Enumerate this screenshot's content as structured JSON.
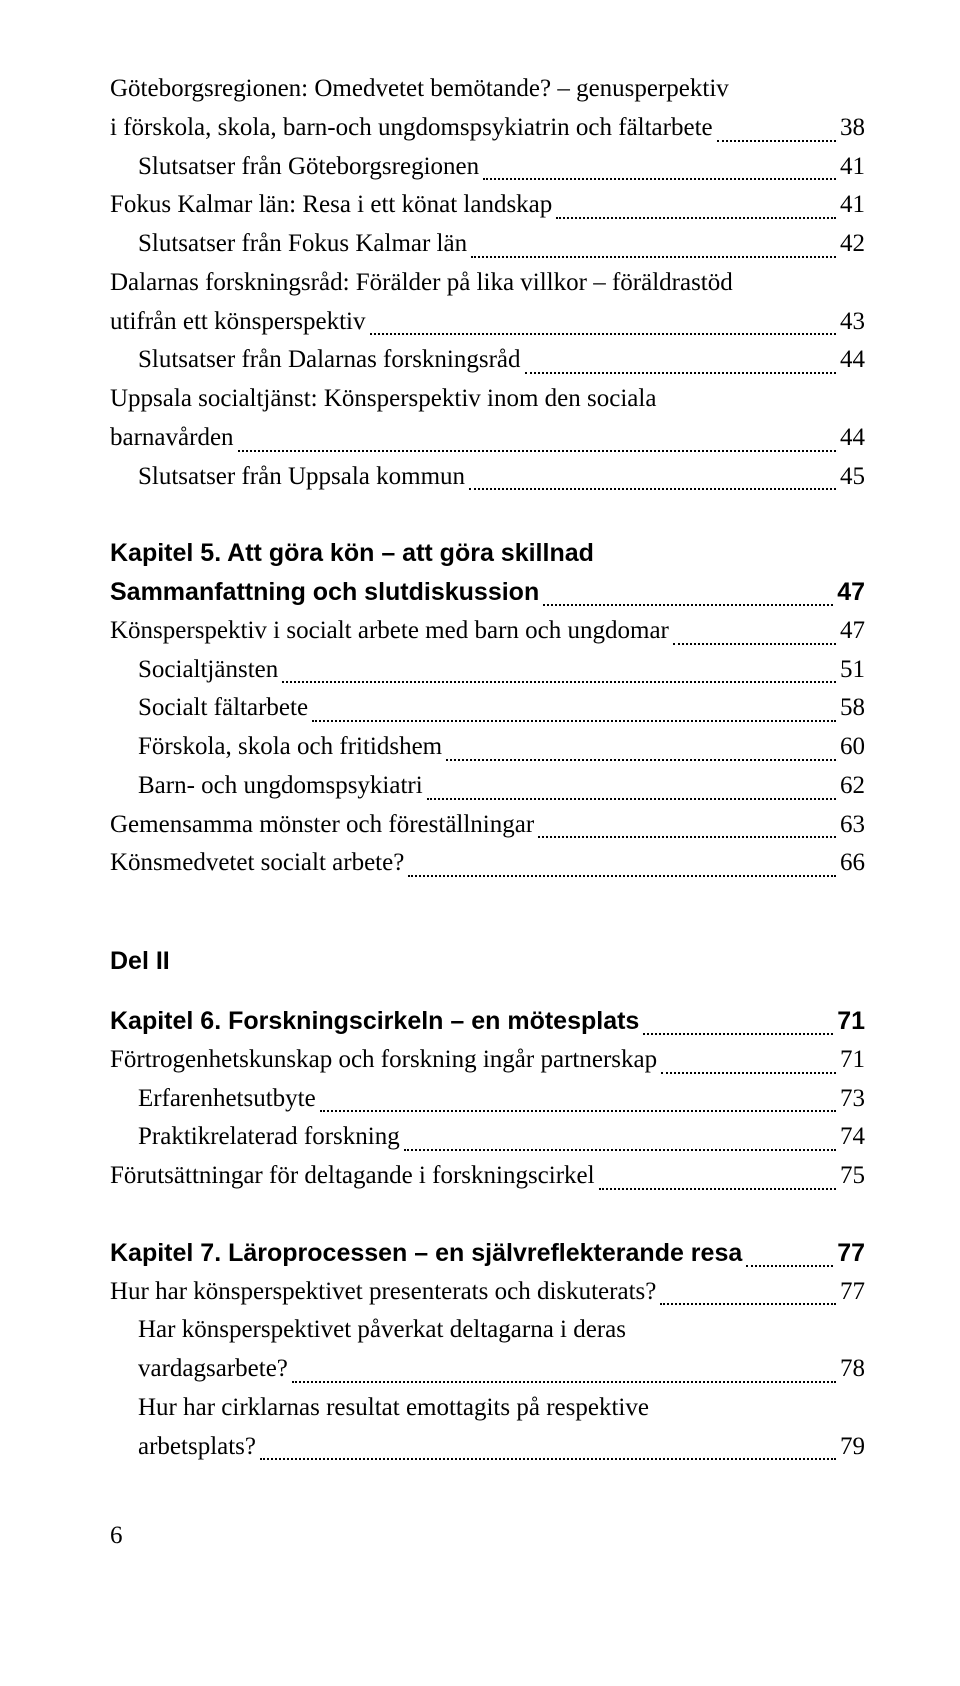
{
  "s1": [
    {
      "label": "Göteborgsregionen: Omedvetet bemötande? – genusperpektiv",
      "cont": "i förskola, skola, barn-och ungdomspsykiatrin och fältarbete",
      "page": "38",
      "indent": false
    },
    {
      "label": "Slutsatser från Göteborgsregionen",
      "page": "41",
      "indent": true
    },
    {
      "label": "Fokus Kalmar län: Resa i ett könat landskap",
      "page": "41",
      "indent": false
    },
    {
      "label": "Slutsatser från Fokus Kalmar län",
      "page": "42",
      "indent": true
    },
    {
      "label": "Dalarnas forskningsråd: Förälder på lika villkor – föräldrastöd",
      "cont": "utifrån ett könsperspektiv",
      "page": "43",
      "indent": false
    },
    {
      "label": "Slutsatser från Dalarnas forskningsråd",
      "page": "44",
      "indent": true
    },
    {
      "label": "Uppsala socialtjänst: Könsperspektiv inom den sociala",
      "cont": "barnavården",
      "page": "44",
      "indent": false
    },
    {
      "label": "Slutsatser från Uppsala kommun",
      "page": "45",
      "indent": true
    }
  ],
  "s2": {
    "heading": {
      "label": "Kapitel 5.  Att göra kön – att göra skillnad",
      "cont": "Sammanfattning och slutdiskussion",
      "page": "47"
    },
    "items": [
      {
        "label": "Könsperspektiv i socialt arbete med barn och ungdomar",
        "page": "47",
        "indent": false
      },
      {
        "label": "Socialtjänsten",
        "page": "51",
        "indent": true
      },
      {
        "label": "Socialt fältarbete",
        "page": "58",
        "indent": true
      },
      {
        "label": "Förskola, skola och fritidshem",
        "page": "60",
        "indent": true
      },
      {
        "label": "Barn- och ungdomspsykiatri",
        "page": "62",
        "indent": true
      },
      {
        "label": "Gemensamma mönster och föreställningar",
        "page": "63",
        "indent": false
      },
      {
        "label": "Könsmedvetet socialt arbete?",
        "page": "66",
        "indent": false
      }
    ]
  },
  "part2": "Del II",
  "s3": {
    "heading": {
      "label": "Kapitel 6.  Forskningscirkeln – en mötesplats",
      "page": "71"
    },
    "items": [
      {
        "label": "Förtrogenhetskunskap och forskning ingår partnerskap",
        "page": "71",
        "indent": false
      },
      {
        "label": "Erfarenhetsutbyte",
        "page": "73",
        "indent": true
      },
      {
        "label": "Praktikrelaterad forskning",
        "page": "74",
        "indent": true
      },
      {
        "label": "Förutsättningar för deltagande i forskningscirkel",
        "page": "75",
        "indent": false
      }
    ]
  },
  "s4": {
    "heading": {
      "label": "Kapitel 7.  Läroprocessen – en självreflekterande resa",
      "page": "77"
    },
    "items": [
      {
        "label": "Hur har könsperspektivet presenterats och diskuterats?",
        "page": "77",
        "indent": false
      },
      {
        "label": "Har könsperspektivet påverkat deltagarna i deras",
        "cont": "vardagsarbete?",
        "page": "78",
        "indent": true
      },
      {
        "label": "Hur har cirklarnas resultat emottagits på respektive",
        "cont": "arbetsplats?",
        "page": "79",
        "indent": true
      }
    ]
  },
  "pageNumber": "6"
}
